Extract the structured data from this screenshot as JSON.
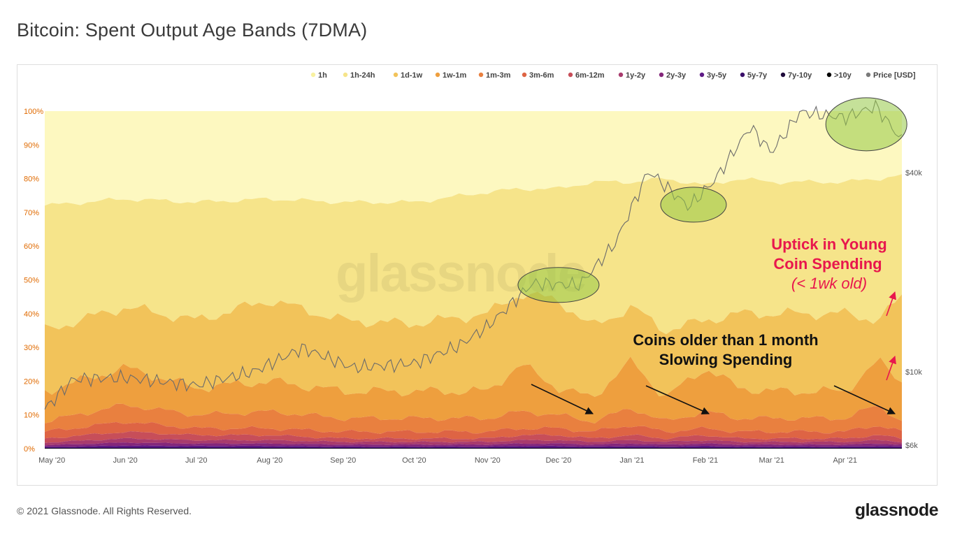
{
  "title": "Bitcoin: Spent Output Age Bands (7DMA)",
  "footer": {
    "copyright": "© 2021 Glassnode. All Rights Reserved.",
    "brand": "glassnode"
  },
  "watermark": "glassnode",
  "chart_data": {
    "type": "area",
    "stacked": true,
    "normalized_percent": true,
    "x_range": [
      "2020-04-28",
      "2021-04-25"
    ],
    "x_ticks": [
      "May '20",
      "Jun '20",
      "Jul '20",
      "Aug '20",
      "Sep '20",
      "Oct '20",
      "Nov '20",
      "Dec '20",
      "Jan '21",
      "Feb '21",
      "Mar '21",
      "Apr '21"
    ],
    "y_ticks": [
      "0%",
      "10%",
      "20%",
      "30%",
      "40%",
      "50%",
      "60%",
      "70%",
      "80%",
      "90%",
      "100%"
    ],
    "ylim": [
      0,
      100
    ],
    "right_axis": {
      "scale": "log",
      "ticks": [
        "$6k",
        "$10k",
        "$40k"
      ],
      "values": [
        6000,
        10000,
        40000
      ]
    },
    "legend_position": "top-right",
    "grid": false,
    "series": [
      {
        "name": "1h",
        "color": "#fdf8c0"
      },
      {
        "name": "1h-24h",
        "color": "#f6e48a"
      },
      {
        "name": "1d-1w",
        "color": "#f2c35a"
      },
      {
        "name": "1w-1m",
        "color": "#ee9f3e"
      },
      {
        "name": "1m-3m",
        "color": "#e9803f"
      },
      {
        "name": "3m-6m",
        "color": "#de6444"
      },
      {
        "name": "6m-12m",
        "color": "#c74e59"
      },
      {
        "name": "1y-2y",
        "color": "#a83b6d"
      },
      {
        "name": "2y-3y",
        "color": "#84267a"
      },
      {
        "name": "3y-5y",
        "color": "#5e1a86"
      },
      {
        "name": "5y-7y",
        "color": "#3a0f6a"
      },
      {
        "name": "7y-10y",
        "color": "#1e0a3a"
      },
      {
        "name": ">10y",
        "color": "#000000"
      },
      {
        "name": "Price [USD]",
        "color": "#7a7a7a"
      }
    ],
    "cumulative_boundaries_pct": {
      "dates": [
        "2020-04-28",
        "2020-06-01",
        "2020-07-01",
        "2020-08-01",
        "2020-09-01",
        "2020-10-01",
        "2020-11-01",
        "2020-11-15",
        "2020-12-01",
        "2020-12-15",
        "2021-01-01",
        "2021-01-15",
        "2021-02-01",
        "2021-02-15",
        "2021-03-01",
        "2021-03-15",
        "2021-04-01",
        "2021-04-15",
        "2021-04-25"
      ],
      "below_1h": [
        72,
        74,
        73,
        74,
        73,
        73,
        76,
        77,
        77,
        79,
        79,
        80,
        78,
        80,
        79,
        79,
        79,
        80,
        81
      ],
      "below_1h_24h": [
        35,
        42,
        38,
        44,
        38,
        37,
        40,
        46,
        44,
        36,
        42,
        35,
        38,
        40,
        40,
        40,
        40,
        38,
        45
      ],
      "below_1d_1w": [
        17,
        24,
        18,
        20,
        17,
        17,
        17,
        25,
        18,
        15,
        26,
        15,
        24,
        18,
        17,
        17,
        17,
        26,
        20
      ],
      "below_1w_1m": [
        8,
        13,
        10,
        11,
        9,
        9,
        9,
        11,
        10,
        8,
        12,
        8,
        11,
        9,
        9,
        9,
        9,
        13,
        8
      ],
      "below_1m_3m": [
        5,
        8,
        6,
        6,
        5,
        5,
        5,
        6,
        6,
        5,
        7,
        5,
        6,
        5,
        5,
        5,
        5,
        7,
        5
      ],
      "below_3m_6m": [
        3,
        5,
        4,
        4,
        3,
        3,
        3,
        4,
        4,
        3,
        4,
        3,
        4,
        3,
        3,
        3,
        3,
        4,
        3
      ],
      "below_6m_12m": [
        1.8,
        3,
        2.5,
        2.5,
        2,
        2,
        2,
        2.5,
        2.5,
        2,
        2.5,
        2,
        2.5,
        2,
        2,
        2,
        2,
        2.5,
        2
      ],
      "below_1y_2y": [
        1,
        1.8,
        1.5,
        1.5,
        1.2,
        1.2,
        1.2,
        1.5,
        1.5,
        1.2,
        1.5,
        1.2,
        1.5,
        1.2,
        1.2,
        1.2,
        1.2,
        1.5,
        1.2
      ],
      "below_2y_3y": [
        0.5,
        0.9,
        0.8,
        0.8,
        0.6,
        0.6,
        0.6,
        0.8,
        0.8,
        0.6,
        0.8,
        0.6,
        0.8,
        0.6,
        0.6,
        0.6,
        0.6,
        0.8,
        0.6
      ]
    },
    "price_usd": {
      "dates": [
        "2020-04-28",
        "2020-05-10",
        "2020-06-01",
        "2020-07-01",
        "2020-07-25",
        "2020-08-15",
        "2020-09-05",
        "2020-10-01",
        "2020-10-20",
        "2020-11-01",
        "2020-11-20",
        "2020-12-10",
        "2020-12-25",
        "2021-01-08",
        "2021-01-25",
        "2021-02-05",
        "2021-02-20",
        "2021-03-01",
        "2021-03-13",
        "2021-04-01",
        "2021-04-14",
        "2021-04-25"
      ],
      "values": [
        7700,
        9500,
        9600,
        9100,
        10000,
        11800,
        10300,
        10600,
        12000,
        13700,
        18500,
        18300,
        24500,
        40500,
        31500,
        38000,
        55000,
        46000,
        61000,
        58700,
        63500,
        50000
      ]
    },
    "annotations": [
      "Uptick in Young",
      "Coin Spending",
      "(< 1wk old)",
      "Coins older than 1 month",
      "Slowing Spending"
    ]
  }
}
